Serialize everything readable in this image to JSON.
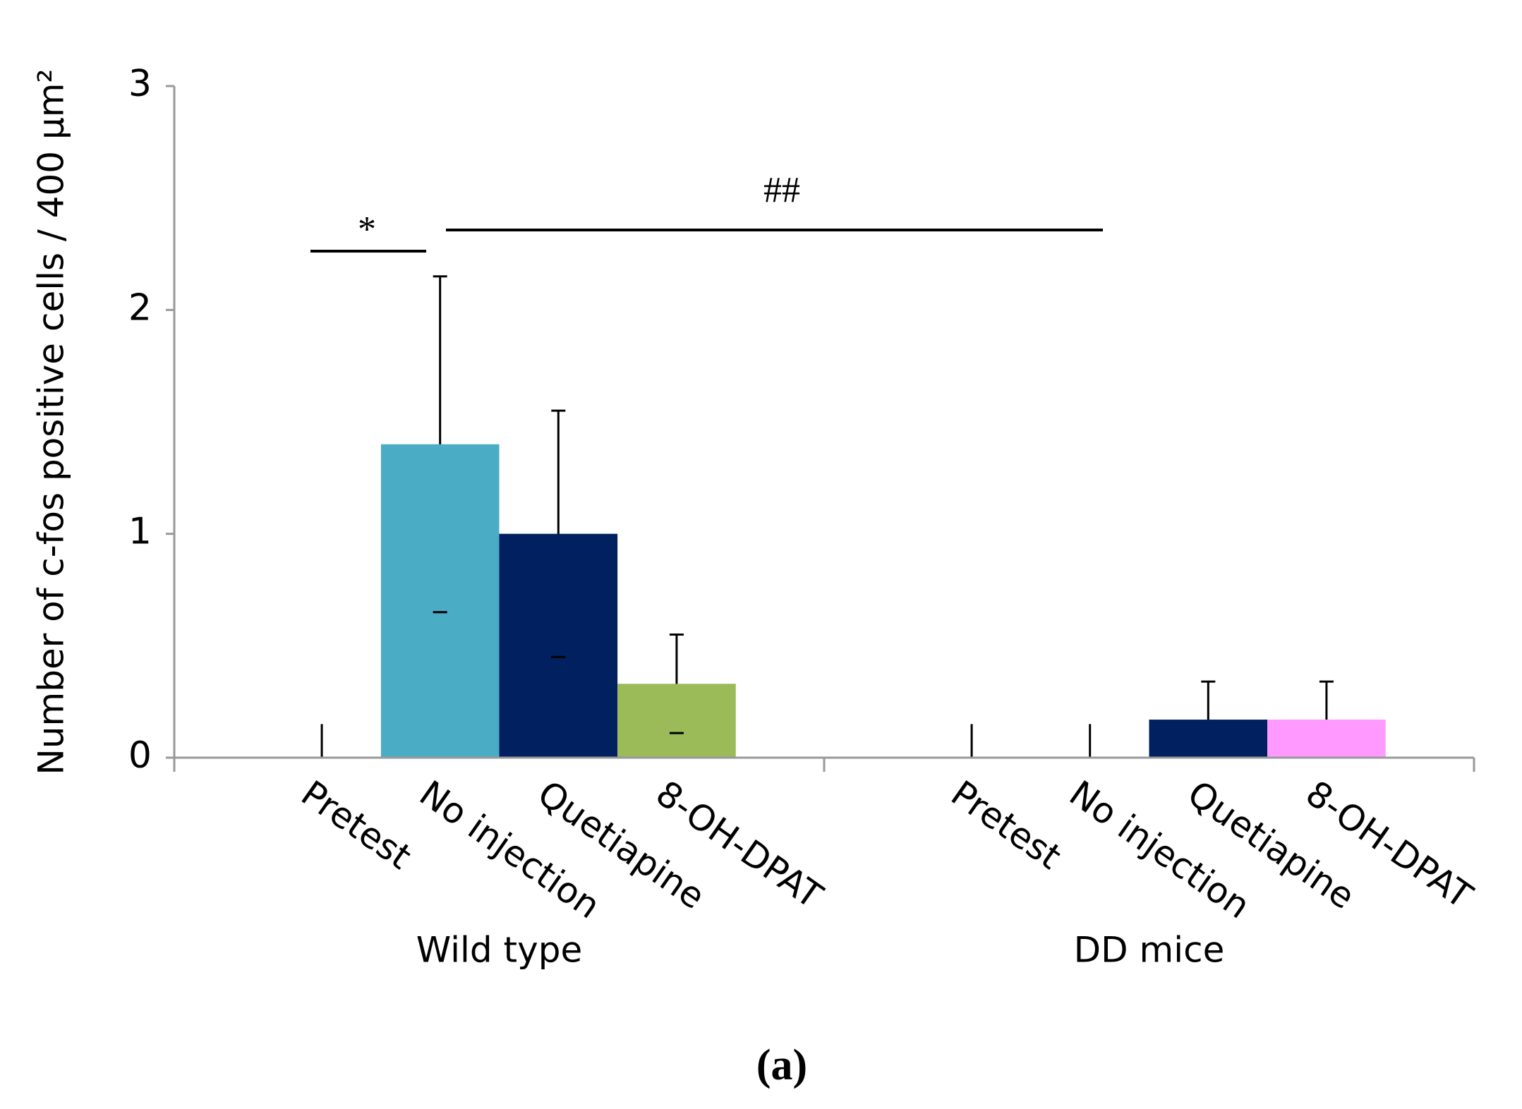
{
  "chart_data": {
    "type": "grouped-bar",
    "ylabel": "Number of c-fos positive cells / 400 µm²",
    "ylim": [
      0,
      3
    ],
    "yticks": [
      0,
      1,
      2,
      3
    ],
    "groups": [
      {
        "name": "Wild type",
        "categories": [
          "Pretest",
          "No injection",
          "Quetiapine",
          "8-OH-DPAT"
        ],
        "values": [
          0,
          1.4,
          1.0,
          0.33
        ],
        "errors": [
          0.15,
          0.75,
          0.55,
          0.22
        ],
        "colors": [
          "#ffffff",
          "#4bacc6",
          "#002060",
          "#9bbb59"
        ]
      },
      {
        "name": "DD mice",
        "categories": [
          "Pretest",
          "No injection",
          "Quetiapine",
          "8-OH-DPAT"
        ],
        "values": [
          0,
          0,
          0.17,
          0.17
        ],
        "errors": [
          0.15,
          0.15,
          0.17,
          0.17
        ],
        "colors": [
          "#ffffff",
          "#ffffff",
          "#002060",
          "#ff99ff"
        ]
      }
    ],
    "annotations": [
      "*",
      "##"
    ],
    "caption": "(a)"
  }
}
